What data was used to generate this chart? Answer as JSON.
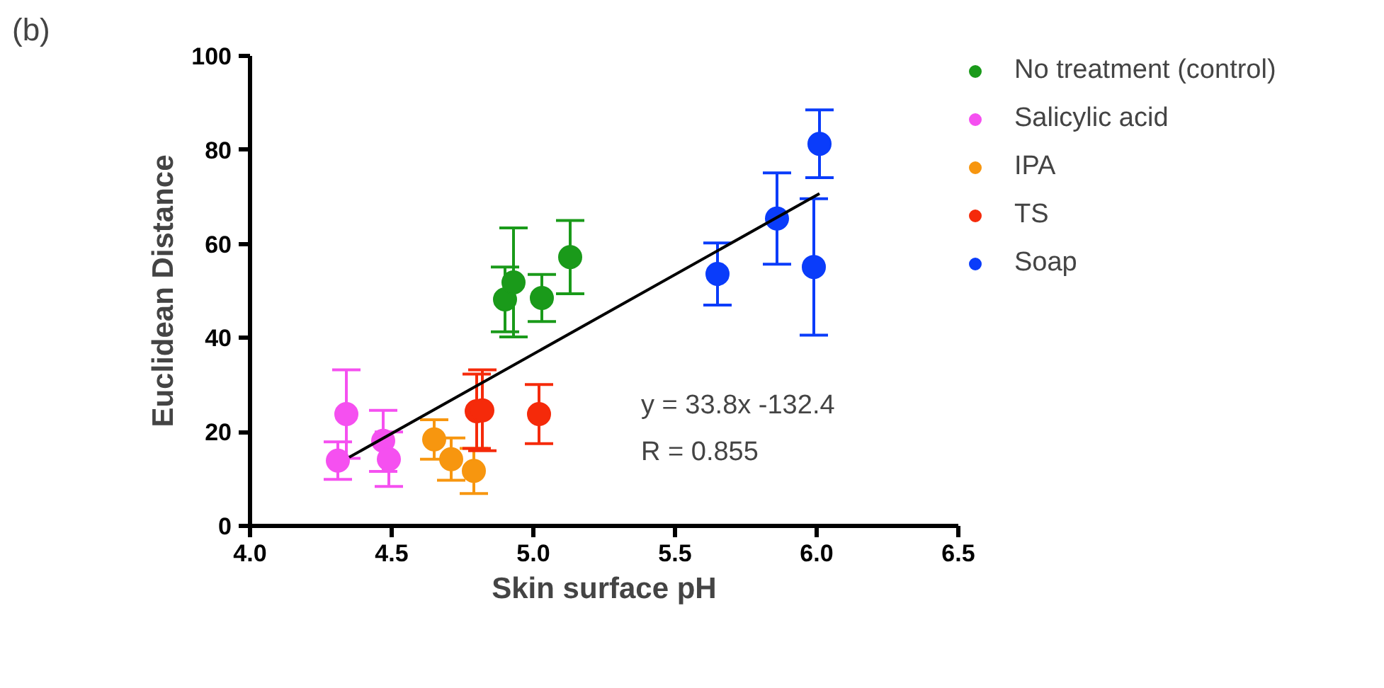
{
  "chart_data": {
    "type": "scatter",
    "xlabel": "Skin surface pH",
    "ylabel": "Euclidean Distance",
    "xlim": [
      4.0,
      6.5
    ],
    "ylim": [
      0,
      100
    ],
    "xticks": [
      {
        "value": 4.0,
        "label": "4.0"
      },
      {
        "value": 4.5,
        "label": "4.5"
      },
      {
        "value": 5.0,
        "label": "5.0"
      },
      {
        "value": 5.5,
        "label": "5.5"
      },
      {
        "value": 6.0,
        "label": "6.0"
      },
      {
        "value": 6.5,
        "label": "6.5"
      }
    ],
    "yticks": [
      0,
      20,
      40,
      60,
      80,
      100
    ],
    "grid": false,
    "legend": "top right",
    "marker": "circle",
    "annotations": [
      "(b)",
      "y = 33.8x -132.4",
      "R = 0.855"
    ],
    "series": [
      {
        "name": "No treatment (control)",
        "color": "#1a9a1a",
        "x": [
          4.9,
          4.93,
          5.03,
          5.13
        ],
        "values": [
          48.2,
          51.8,
          48.5,
          57.2
        ],
        "errors": [
          6.9,
          11.6,
          5,
          7.8
        ]
      },
      {
        "name": "Salicylic acid",
        "color": "#f550f0",
        "x": [
          4.31,
          4.34,
          4.47,
          4.49
        ],
        "values": [
          13.9,
          23.8,
          18.1,
          14.2
        ],
        "errors": [
          4,
          9.4,
          6.5,
          5.8
        ]
      },
      {
        "name": "IPA",
        "color": "#f7960f",
        "x": [
          4.65,
          4.71,
          4.79
        ],
        "values": [
          18.4,
          14.2,
          11.7
        ],
        "errors": [
          4.2,
          4.5,
          4.8
        ]
      },
      {
        "name": "TS",
        "color": "#f52a0a",
        "x": [
          4.8,
          4.82,
          5.02
        ],
        "values": [
          24.4,
          24.6,
          23.8
        ],
        "errors": [
          7.9,
          8.6,
          6.3
        ]
      },
      {
        "name": "Soap",
        "color": "#0a3cfa",
        "x": [
          5.65,
          5.86,
          5.99,
          6.01
        ],
        "values": [
          53.6,
          65.4,
          55.1,
          81.3
        ],
        "errors": [
          6.6,
          9.7,
          14.5,
          7.2
        ]
      },
      {
        "type": "line",
        "marker": "none",
        "color": "#000000",
        "x": [
          4.35,
          6.01
        ],
        "values": [
          14.6,
          70.7
        ]
      }
    ]
  }
}
